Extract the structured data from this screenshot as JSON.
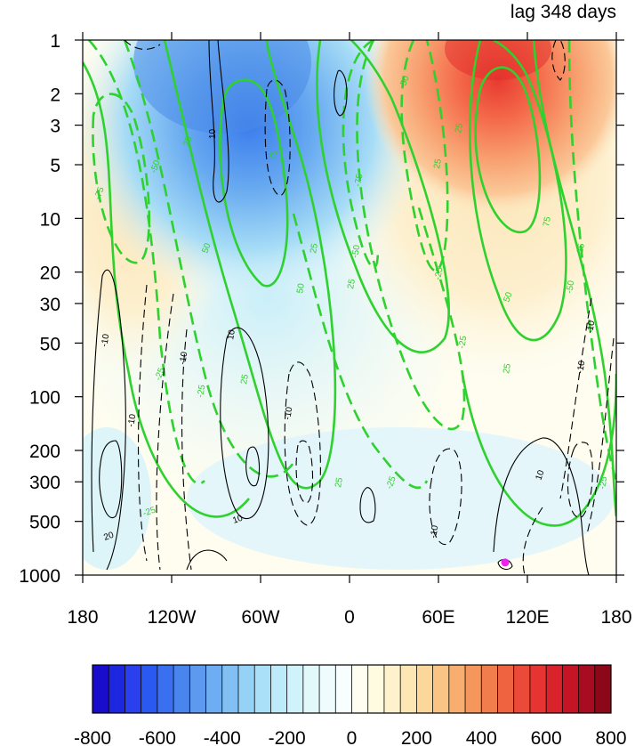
{
  "chart_data": {
    "type": "contour",
    "title": "lag 348 days",
    "x_ticks": [
      "180",
      "120W",
      "60W",
      "0",
      "60E",
      "120E",
      "180"
    ],
    "x_tick_values": [
      -180,
      -120,
      -60,
      0,
      60,
      120,
      180
    ],
    "y_ticks": [
      "1",
      "2",
      "3",
      "5",
      "10",
      "20",
      "30",
      "50",
      "100",
      "200",
      "300",
      "500",
      "1000"
    ],
    "y_tick_values": [
      1,
      2,
      3,
      5,
      10,
      20,
      30,
      50,
      100,
      200,
      300,
      500,
      1000
    ],
    "y_scale": "log",
    "y_reversed": true,
    "xlim": [
      -180,
      180
    ],
    "ylim": [
      1000,
      1
    ],
    "colorbar": {
      "levels": [
        -800,
        -750,
        -700,
        -650,
        -600,
        -550,
        -500,
        -450,
        -400,
        -350,
        -300,
        -250,
        -200,
        -150,
        -100,
        -50,
        0,
        50,
        100,
        150,
        200,
        250,
        300,
        350,
        400,
        450,
        500,
        550,
        600,
        650,
        700,
        750,
        800
      ],
      "labels": [
        "-800",
        "-600",
        "-400",
        "-200",
        "0",
        "200",
        "400",
        "600",
        "800"
      ],
      "label_values": [
        -800,
        -600,
        -400,
        -200,
        0,
        200,
        400,
        600,
        800
      ],
      "colors": [
        "#1a0ccc",
        "#1e27e0",
        "#2a40ee",
        "#2a59f2",
        "#3a6ff0",
        "#4a85ee",
        "#5c99ef",
        "#6fadf2",
        "#82c0f4",
        "#96d2f6",
        "#aae0f8",
        "#bdebfa",
        "#d0f3fb",
        "#e2f9fc",
        "#eefcfd",
        "#f8fefe",
        "#fefef0",
        "#fefbe0",
        "#fdf2cc",
        "#fce6b4",
        "#fbd79c",
        "#f9c484",
        "#f7ae6e",
        "#f5975c",
        "#f27d4c",
        "#ef6340",
        "#ec4a38",
        "#e63432",
        "#d9222c",
        "#c41426",
        "#a80c20",
        "#8c0818"
      ]
    },
    "line_contour_levels": [
      -25,
      -50,
      -75,
      25,
      50,
      75
    ],
    "black_contour_levels": [
      -10,
      10,
      20
    ],
    "marker": {
      "lon": 105,
      "pressure": 850,
      "color": "#ee22ee"
    }
  }
}
